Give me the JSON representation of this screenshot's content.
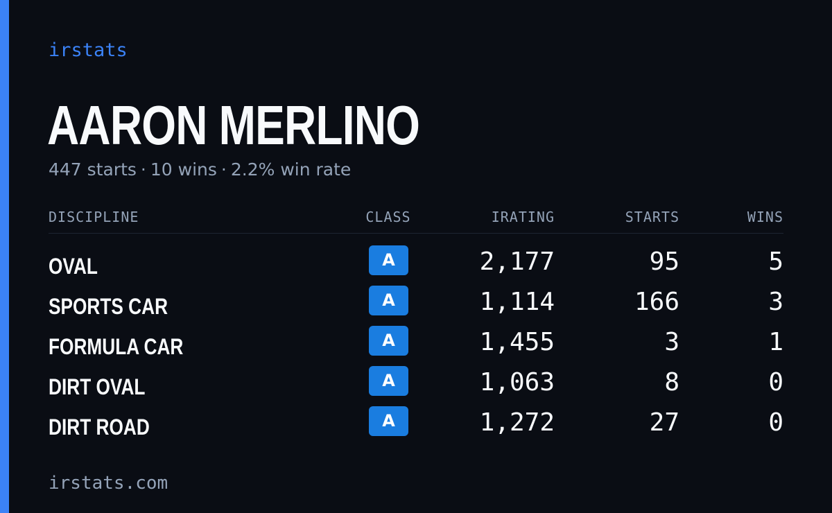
{
  "brand": "irstats",
  "driver": {
    "name": "AARON MERLINO"
  },
  "summary": {
    "starts": "447 starts",
    "wins": "10 wins",
    "win_rate": "2.2% win rate",
    "separator": "·"
  },
  "table": {
    "headers": {
      "discipline": "DISCIPLINE",
      "class": "CLASS",
      "irating": "IRATING",
      "starts": "STARTS",
      "wins": "WINS"
    },
    "rows": [
      {
        "discipline": "OVAL",
        "class": "A",
        "irating": "2,177",
        "starts": "95",
        "wins": "5"
      },
      {
        "discipline": "SPORTS CAR",
        "class": "A",
        "irating": "1,114",
        "starts": "166",
        "wins": "3"
      },
      {
        "discipline": "FORMULA CAR",
        "class": "A",
        "irating": "1,455",
        "starts": "3",
        "wins": "1"
      },
      {
        "discipline": "DIRT OVAL",
        "class": "A",
        "irating": "1,063",
        "starts": "8",
        "wins": "0"
      },
      {
        "discipline": "DIRT ROAD",
        "class": "A",
        "irating": "1,272",
        "starts": "27",
        "wins": "0"
      }
    ]
  },
  "footer": {
    "url": "irstats.com"
  },
  "colors": {
    "background": "#0a0d14",
    "accent": "#3b82f6",
    "badge": "#1a7de0",
    "muted_text": "#94a3b8",
    "primary_text": "#f8fafc"
  }
}
